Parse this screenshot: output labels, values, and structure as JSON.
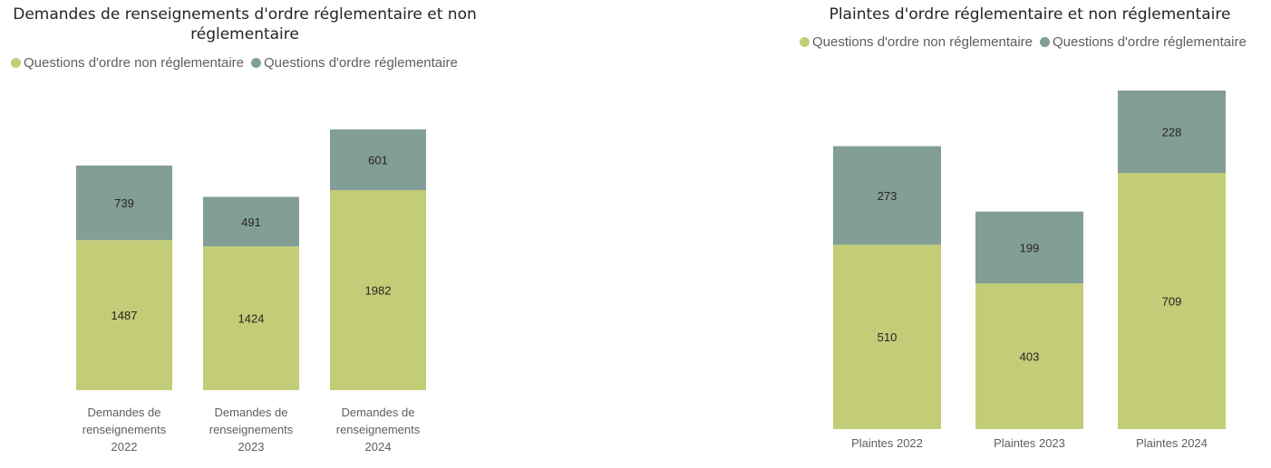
{
  "chart_data": [
    {
      "type": "bar",
      "stacked": true,
      "title": "Demandes de renseignements d'ordre réglementaire et non réglementaire",
      "legend_position": "top-left",
      "grid": false,
      "categories": [
        [
          "Demandes de",
          "renseignements",
          "2022"
        ],
        [
          "Demandes de",
          "renseignements",
          "2023"
        ],
        [
          "Demandes de",
          "renseignements",
          "2024"
        ]
      ],
      "series": [
        {
          "name": "Questions d'ordre non réglementaire",
          "color": "#c3cd77",
          "values": [
            1487,
            1424,
            1982
          ]
        },
        {
          "name": "Questions d'ordre réglementaire",
          "color": "#839e96",
          "values": [
            739,
            491,
            601
          ]
        }
      ]
    },
    {
      "type": "bar",
      "stacked": true,
      "title": "Plaintes d'ordre réglementaire et non réglementaire",
      "legend_position": "top-right",
      "grid": false,
      "categories": [
        [
          "Plaintes 2022"
        ],
        [
          "Plaintes 2023"
        ],
        [
          "Plaintes 2024"
        ]
      ],
      "series": [
        {
          "name": "Questions d'ordre non réglementaire",
          "color": "#c3cd77",
          "values": [
            510,
            403,
            709
          ]
        },
        {
          "name": "Questions d'ordre réglementaire",
          "color": "#839e96",
          "values": [
            273,
            199,
            228
          ]
        }
      ]
    }
  ]
}
